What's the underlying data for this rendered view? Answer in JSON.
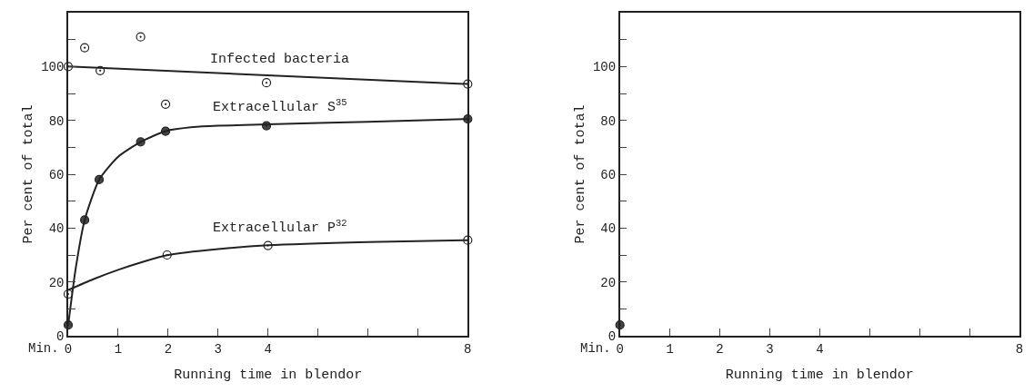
{
  "chart_data": [
    {
      "type": "scatter",
      "xlabel": "Running time in blendor",
      "ylabel": "Per cent of total",
      "xlim": [
        0,
        8
      ],
      "ylim": [
        0,
        120
      ],
      "xticks": [
        0,
        1,
        2,
        3,
        4,
        {
          "value": 5,
          "label": null
        },
        {
          "value": 6,
          "label": null
        },
        {
          "value": 7,
          "label": null
        },
        8
      ],
      "yticks": [
        0,
        {
          "value": 10,
          "label": null
        },
        20,
        {
          "value": 30,
          "label": null
        },
        40,
        {
          "value": 50,
          "label": null
        },
        60,
        {
          "value": 70,
          "label": null
        },
        80,
        {
          "value": 90,
          "label": null
        },
        100,
        {
          "value": 110,
          "label": null
        }
      ],
      "grid": false,
      "legend": false,
      "series": [
        {
          "marker": "circle",
          "color": "#ffffff",
          "x": [
            0,
            0.33,
            0.64,
            1.45,
            1.95,
            3.97,
            8
          ],
          "values": [
            100,
            107,
            98.5,
            111,
            86,
            94,
            93.5
          ]
        },
        {
          "marker": "circle",
          "color": "#444444",
          "x": [
            0,
            0.33,
            0.62,
            1.45,
            1.95,
            3.97,
            8
          ],
          "values": [
            4,
            43,
            58,
            72,
            76,
            78,
            80.5
          ]
        },
        {
          "marker": "circle",
          "color": "#ffffff",
          "x": [
            0,
            1.98,
            4,
            8
          ],
          "values": [
            15.5,
            30,
            33.5,
            35.5
          ]
        },
        {
          "type": "line",
          "name": "Infected bacteria",
          "marker": "none",
          "color": "#222222",
          "x": [
            0,
            8
          ],
          "values": [
            100,
            93.5
          ]
        },
        {
          "type": "line",
          "name": "Extracellular S$^{35}$",
          "marker": "none",
          "color": "#222222",
          "x": [
            0,
            0.15,
            0.33,
            0.62,
            1,
            1.45,
            1.95,
            2.5,
            3,
            4,
            6,
            8
          ],
          "values": [
            4,
            25,
            43,
            58,
            66.5,
            72,
            76,
            77.5,
            78,
            78.5,
            79.5,
            80.5
          ]
        },
        {
          "type": "line",
          "name": "Extracellular P$^{32}$",
          "marker": "none",
          "color": "#222222",
          "x": [
            0,
            0.5,
            1,
            1.5,
            2,
            3,
            4,
            6,
            8
          ],
          "values": [
            17,
            21,
            24.5,
            27.5,
            30,
            32.2,
            33.6,
            34.8,
            35.5
          ]
        }
      ],
      "annotations": [
        "Min."
      ]
    },
    {
      "type": "scatter",
      "xlabel": "Running time in blendor",
      "ylabel": "Per cent of total",
      "xlim": [
        0,
        8
      ],
      "ylim": [
        0,
        120
      ],
      "xticks": [
        0,
        1,
        2,
        3,
        4,
        {
          "value": 5,
          "label": null
        },
        {
          "value": 6,
          "label": null
        },
        {
          "value": 7,
          "label": null
        },
        8
      ],
      "yticks": [
        0,
        {
          "value": 10,
          "label": null
        },
        20,
        {
          "value": 30,
          "label": null
        },
        40,
        {
          "value": 50,
          "label": null
        },
        60,
        {
          "value": 70,
          "label": null
        },
        80,
        {
          "value": 90,
          "label": null
        },
        100,
        {
          "value": 110,
          "label": null
        }
      ],
      "grid": false,
      "legend": false,
      "series": [
        {
          "marker": "circle",
          "color": "#444444",
          "x": [
            0
          ],
          "values": [
            4
          ]
        }
      ],
      "annotations": [
        "Min."
      ]
    }
  ]
}
